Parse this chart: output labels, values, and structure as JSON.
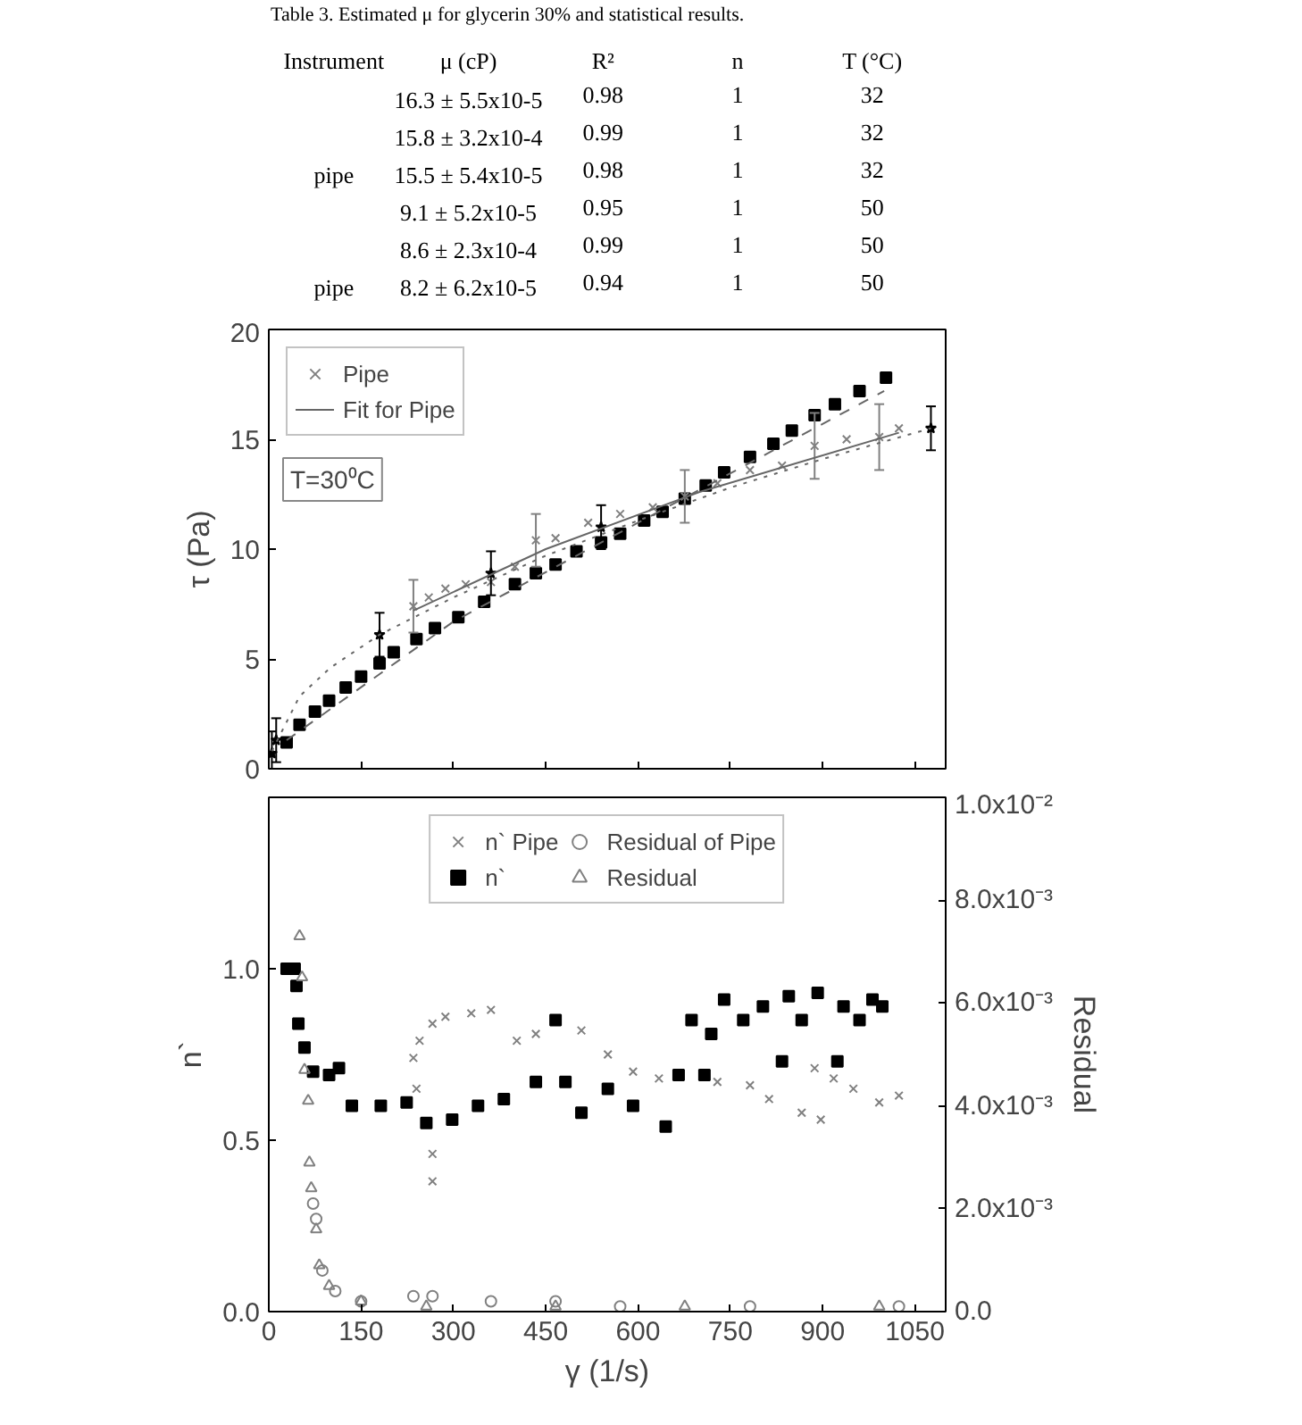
{
  "chart_data": [
    {
      "type": "other",
      "title": "Table 3. Estimated μ for glycerin 30% and statistical results.",
      "categories": [
        "Instrument",
        "μ (cP)",
        "R²",
        "n",
        "T (°C)"
      ],
      "annotations": [
        null,
        "16.3 ± 5.5x10-5",
        "0.98",
        "1",
        "32",
        null,
        "15.8 ± 3.2x10-4",
        "0.99",
        "1",
        "32",
        "pipe",
        "15.5 ± 5.4x10-5",
        "0.98",
        "1",
        "32",
        null,
        "9.1 ± 5.2x10-5",
        "0.95",
        "1",
        "50",
        null,
        "8.6 ± 2.3x10-4",
        "0.99",
        "1",
        "50",
        "pipe",
        "8.2 ± 6.2x10-5",
        "0.94",
        "1",
        "50"
      ]
    },
    {
      "type": "scatter",
      "ylabel": "τ (Pa)",
      "xlim": [
        0,
        1100
      ],
      "xticks": [
        0,
        150,
        300,
        450,
        600,
        750,
        900,
        1050
      ],
      "ylim": [
        0,
        20
      ],
      "yticks": [
        0,
        5,
        10,
        15,
        20
      ],
      "tick_labels": "y",
      "legend": "top left",
      "annotations": [
        "T=30⁰C"
      ],
      "series": [
        {
          "color": "#000000",
          "marker": "square",
          "x": [
            29,
            50,
            75,
            98,
            125,
            150,
            180,
            203,
            240,
            270,
            308,
            350,
            400,
            434,
            466,
            500,
            540,
            571,
            610,
            640,
            676,
            710,
            740,
            782,
            820,
            850,
            887,
            920,
            960,
            1003
          ],
          "values": [
            1.2,
            2.0,
            2.6,
            3.1,
            3.7,
            4.2,
            4.8,
            5.3,
            5.9,
            6.4,
            6.9,
            7.6,
            8.4,
            8.9,
            9.3,
            9.9,
            10.3,
            10.7,
            11.3,
            11.7,
            12.3,
            12.9,
            13.5,
            14.2,
            14.8,
            15.4,
            16.1,
            16.6,
            17.2,
            17.8
          ]
        },
        {
          "name": "Pipe",
          "color": "#808080",
          "marker": "cross",
          "x": [
            235,
            260,
            287,
            320,
            361,
            400,
            434,
            466,
            519,
            571,
            624,
            676,
            729,
            782,
            834,
            887,
            939,
            992,
            1024
          ],
          "values": [
            7.4,
            7.8,
            8.2,
            8.4,
            8.5,
            9.2,
            10.4,
            10.5,
            11.2,
            11.6,
            11.9,
            12.4,
            13.0,
            13.6,
            13.8,
            14.7,
            15.0,
            15.1,
            15.5
          ],
          "errors": [
            1.2,
            null,
            null,
            null,
            null,
            null,
            1.2,
            null,
            null,
            null,
            null,
            1.2,
            null,
            null,
            null,
            1.5,
            null,
            1.5,
            null
          ]
        },
        {
          "color": "#000000",
          "marker": "star",
          "x": [
            5,
            12,
            180,
            361,
            540,
            1076
          ],
          "values": [
            0.7,
            1.3,
            6.1,
            8.9,
            11.0,
            15.5
          ],
          "errors": [
            1.0,
            1.0,
            1.0,
            1.0,
            1.0,
            1.0
          ]
        },
        {
          "type": "line",
          "color": "#666666",
          "line_style": "dotted",
          "x": [
            5,
            50,
            100,
            180,
            300,
            450,
            600,
            750,
            900,
            1076
          ],
          "values": [
            0.8,
            3.3,
            4.6,
            6.1,
            7.8,
            9.7,
            11.3,
            12.8,
            14.1,
            15.5
          ]
        },
        {
          "type": "line",
          "name": "Fit for Pipe",
          "color": "#666666",
          "line_style": "solid",
          "x": [
            235,
            450,
            700,
            1024
          ],
          "values": [
            7.2,
            10.0,
            12.6,
            15.3
          ]
        },
        {
          "type": "line",
          "color": "#666666",
          "line_style": "dashed",
          "x": [
            29,
            300,
            600,
            1000
          ],
          "values": [
            1.3,
            6.7,
            11.2,
            17.2
          ]
        }
      ]
    },
    {
      "type": "scatter",
      "xlabel": "γ (1/s)",
      "ylabel": "n`",
      "y2label": "Residual",
      "xlim": [
        0,
        1100
      ],
      "xticks": [
        0,
        150,
        300,
        450,
        600,
        750,
        900,
        1050
      ],
      "ylim": [
        0,
        1.5
      ],
      "yticks": [
        {
          "value": 0,
          "label": "0.0"
        },
        {
          "value": 0.5,
          "label": "0.5"
        },
        {
          "value": 1,
          "label": "1.0"
        }
      ],
      "y2lim": [
        0,
        0.01
      ],
      "y2ticks": [
        {
          "value": 0,
          "label": "0.0"
        },
        {
          "value": 0.002,
          "label": "2.0x10⁻³"
        },
        {
          "value": 0.004,
          "label": "4.0x10⁻³"
        },
        {
          "value": 0.006,
          "label": "6.0x10⁻³"
        },
        {
          "value": 0.008,
          "label": "8.0x10⁻³"
        },
        {
          "value": 0.01,
          "label": "1.0x10⁻²"
        }
      ],
      "legend": "top",
      "series": [
        {
          "name": "n` Pipe",
          "color": "#808080",
          "marker": "cross",
          "x": [
            235,
            240,
            245,
            266,
            266,
            266,
            287,
            329,
            361,
            403,
            434,
            508,
            551,
            592,
            634,
            729,
            782,
            813,
            866,
            887,
            897,
            918,
            950,
            992,
            1024
          ],
          "values": [
            0.74,
            0.65,
            0.79,
            0.84,
            0.46,
            0.38,
            0.86,
            0.87,
            0.88,
            0.79,
            0.81,
            0.82,
            0.75,
            0.7,
            0.68,
            0.67,
            0.66,
            0.62,
            0.58,
            0.71,
            0.56,
            0.68,
            0.65,
            0.61,
            0.63
          ]
        },
        {
          "name": "n`",
          "color": "#000000",
          "marker": "square",
          "x": [
            29,
            42,
            45,
            48,
            58,
            72,
            98,
            114,
            135,
            182,
            224,
            256,
            298,
            340,
            382,
            434,
            466,
            482,
            508,
            551,
            592,
            645,
            666,
            687,
            708,
            719,
            740,
            771,
            803,
            834,
            845,
            866,
            892,
            924,
            934,
            960,
            981,
            997
          ],
          "values": [
            1.0,
            1.0,
            0.95,
            0.84,
            0.77,
            0.7,
            0.69,
            0.71,
            0.6,
            0.6,
            0.61,
            0.55,
            0.56,
            0.6,
            0.62,
            0.67,
            0.85,
            0.67,
            0.58,
            0.65,
            0.6,
            0.54,
            0.69,
            0.85,
            0.69,
            0.81,
            0.91,
            0.85,
            0.89,
            0.73,
            0.92,
            0.85,
            0.93,
            0.73,
            0.89,
            0.85,
            0.91,
            0.89
          ]
        },
        {
          "name": "Residual of Pipe",
          "axis": "y2",
          "color": "#808080",
          "marker": "circle",
          "x": [
            72,
            77,
            87,
            108,
            150,
            235,
            266,
            361,
            466,
            571,
            782,
            1024
          ],
          "values": [
            0.0021,
            0.0018,
            0.0008,
            0.0004,
            0.0002,
            0.0003,
            0.0003,
            0.0002,
            0.0002,
            0.0001,
            0.0001,
            0.0001
          ]
        },
        {
          "name": "Residual",
          "axis": "y2",
          "color": "#808080",
          "marker": "triangle",
          "x": [
            50,
            54,
            58,
            64,
            66,
            69,
            77,
            82,
            98,
            150,
            256,
            466,
            676,
            992
          ],
          "values": [
            0.0073,
            0.0065,
            0.0047,
            0.0041,
            0.0029,
            0.0024,
            0.0016,
            0.0009,
            0.0005,
            0.0002,
            0.0001,
            0.0001,
            0.0001,
            0.0001
          ]
        }
      ]
    }
  ]
}
